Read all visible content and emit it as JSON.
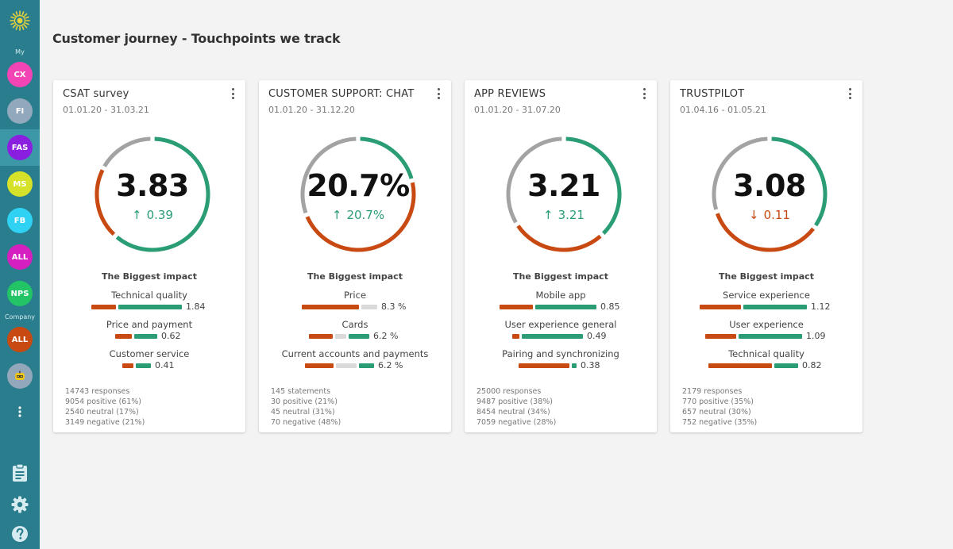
{
  "sidebar": {
    "my_label": "My",
    "company_label": "Company",
    "my_items": [
      {
        "label": "CX",
        "color": "#f244b4"
      },
      {
        "label": "FI",
        "color": "#92a8bd"
      },
      {
        "label": "FAS",
        "color": "#8a1fe0",
        "active": true
      },
      {
        "label": "MS",
        "color": "#d6e22a"
      },
      {
        "label": "FB",
        "color": "#2fd2f2"
      },
      {
        "label": "ALL",
        "color": "#d61fbf"
      },
      {
        "label": "NPS",
        "color": "#22c466"
      }
    ],
    "company_items": [
      {
        "label": "ALL",
        "color": "#c84a12"
      },
      {
        "label": "",
        "color": "#93a7bb",
        "icon": "robot-icon"
      }
    ],
    "bottom_icons": [
      "clipboard-icon",
      "gear-icon",
      "help-icon"
    ]
  },
  "page": {
    "title": "Customer journey - Touchpoints we track"
  },
  "colors": {
    "positive": "#2a9d74",
    "negative": "#c84a12",
    "neutral": "#a3a3a3"
  },
  "cards": [
    {
      "title": "CSAT survey",
      "date": "01.01.20 - 31.03.21",
      "score": "3.83",
      "delta": "0.39",
      "delta_dir": "up",
      "sentiment": {
        "positive": 0.61,
        "neutral": 0.17,
        "negative": 0.21
      },
      "impact_title": "The Biggest impact",
      "drivers": [
        {
          "label": "Technical quality",
          "value": "1.84",
          "neg": 0.39,
          "neu": 0.0,
          "pos": 1.0
        },
        {
          "label": "Price and payment",
          "value": "0.62",
          "neg": 0.26,
          "neu": 0.0,
          "pos": 0.36
        },
        {
          "label": "Customer service",
          "value": "0.41",
          "neg": 0.18,
          "neu": 0.0,
          "pos": 0.24
        }
      ],
      "stats": [
        "14743 responses",
        "9054 positive (61%)",
        "2540 neutral (17%)",
        "3149 negative (21%)"
      ]
    },
    {
      "title": "CUSTOMER SUPPORT: CHAT",
      "date": "01.01.20 - 31.12.20",
      "score": "20.7%",
      "delta": "20.7%",
      "delta_dir": "up",
      "sentiment": {
        "positive": 0.21,
        "neutral": 0.31,
        "negative": 0.48
      },
      "impact_title": "The Biggest impact",
      "drivers": [
        {
          "label": "Price",
          "value": "8.3 %",
          "neg": 0.9,
          "neu": 0.25,
          "pos": 0.0
        },
        {
          "label": "Cards",
          "value": "6.2 %",
          "neg": 0.38,
          "neu": 0.18,
          "pos": 0.32
        },
        {
          "label": "Current accounts and payments",
          "value": "6.2 %",
          "neg": 0.45,
          "neu": 0.32,
          "pos": 0.24
        }
      ],
      "stats": [
        "145 statements",
        "30 positive (21%)",
        "45 neutral (31%)",
        "70 negative (48%)"
      ]
    },
    {
      "title": "APP REVIEWS",
      "date": "01.01.20 - 31.07.20",
      "score": "3.21",
      "delta": "3.21",
      "delta_dir": "up",
      "sentiment": {
        "positive": 0.38,
        "neutral": 0.34,
        "negative": 0.28
      },
      "impact_title": "The Biggest impact",
      "drivers": [
        {
          "label": "Mobile app",
          "value": "0.85",
          "neg": 0.53,
          "neu": 0.0,
          "pos": 0.96
        },
        {
          "label": "User experience general",
          "value": "0.49",
          "neg": 0.11,
          "neu": 0.0,
          "pos": 0.96
        },
        {
          "label": "Pairing and synchronizing",
          "value": "0.38",
          "neg": 0.8,
          "neu": 0.0,
          "pos": 0.08
        }
      ],
      "stats": [
        "25000 responses",
        "9487 positive (38%)",
        "8454 neutral (34%)",
        "7059 negative (28%)"
      ]
    },
    {
      "title": "TRUSTPILOT",
      "date": "01.04.16 - 01.05.21",
      "score": "3.08",
      "delta": "0.11",
      "delta_dir": "down",
      "sentiment": {
        "positive": 0.35,
        "neutral": 0.3,
        "negative": 0.35
      },
      "impact_title": "The Biggest impact",
      "drivers": [
        {
          "label": "Service experience",
          "value": "1.12",
          "neg": 0.65,
          "neu": 0.0,
          "pos": 1.0
        },
        {
          "label": "User experience",
          "value": "1.09",
          "neg": 0.49,
          "neu": 0.0,
          "pos": 1.0
        },
        {
          "label": "Technical quality",
          "value": "0.82",
          "neg": 1.0,
          "neu": 0.0,
          "pos": 0.38
        }
      ],
      "stats": [
        "2179 responses",
        "770 positive (35%)",
        "657 neutral (30%)",
        "752 negative (35%)"
      ]
    }
  ]
}
